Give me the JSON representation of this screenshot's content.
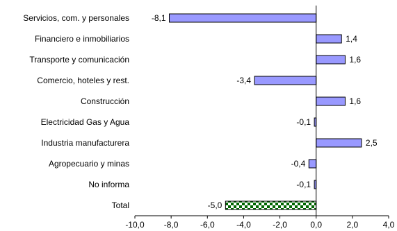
{
  "chart_data": {
    "type": "bar",
    "orientation": "horizontal",
    "categories": [
      "Servicios, com. y personales",
      "Financiero e inmobiliarios",
      "Transporte y comunicación",
      "Comercio, hoteles y rest.",
      "Construcción",
      "Electricidad Gas y Agua",
      "Industria manufacturera",
      "Agropecuario y minas",
      "No informa",
      "Total"
    ],
    "values": [
      -8.1,
      1.4,
      1.6,
      -3.4,
      1.6,
      -0.1,
      2.5,
      -0.4,
      -0.1,
      -5.0
    ],
    "value_labels": [
      "-8,1",
      "1,4",
      "1,6",
      "-3,4",
      "1,6",
      "-0,1",
      "2,5",
      "-0,4",
      "-0,1",
      "-5,0"
    ],
    "xlim": [
      -10,
      4
    ],
    "x_ticks": [
      -10,
      -8,
      -6,
      -4,
      -2,
      0,
      2,
      4
    ],
    "x_tick_labels": [
      "-10,0",
      "-8,0",
      "-6,0",
      "-4,0",
      "-2,0",
      "0,0",
      "2,0",
      "4,0"
    ],
    "grid": false,
    "legend": "none",
    "colors": {
      "bar_fill": "#9999ff",
      "bar_stroke": "#000000",
      "total_pattern_dark": "#006600",
      "total_pattern_light": "#ffffff",
      "axis": "#000000"
    }
  }
}
